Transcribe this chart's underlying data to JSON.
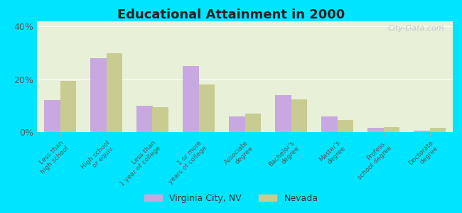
{
  "title": "Educational Attainment in 2000",
  "categories": [
    "Less than\nhigh school",
    "High school\nor equiv.",
    "Less than\n1 year of college",
    "1 or more\nyears of college",
    "Associate\ndegree",
    "Bachelor's\ndegree",
    "Master's\ndegree",
    "Profess.\nschool degree",
    "Doctorate\ndegree"
  ],
  "virginia_city": [
    12,
    28,
    10,
    25,
    6,
    14,
    6,
    1.5,
    0.5
  ],
  "nevada": [
    19.5,
    30,
    9.5,
    18,
    7,
    12.5,
    4.5,
    2,
    1.5
  ],
  "virginia_color": "#c8a8e0",
  "nevada_color": "#c8cc90",
  "background_color": "#e8f0d8",
  "outer_background": "#00e5ff",
  "ylim": [
    0,
    42
  ],
  "yticks": [
    0,
    20,
    40
  ],
  "ytick_labels": [
    "0%",
    "20%",
    "40%"
  ],
  "bar_width": 0.35,
  "legend_labels": [
    "Virginia City, NV",
    "Nevada"
  ],
  "watermark": "City-Data.com"
}
